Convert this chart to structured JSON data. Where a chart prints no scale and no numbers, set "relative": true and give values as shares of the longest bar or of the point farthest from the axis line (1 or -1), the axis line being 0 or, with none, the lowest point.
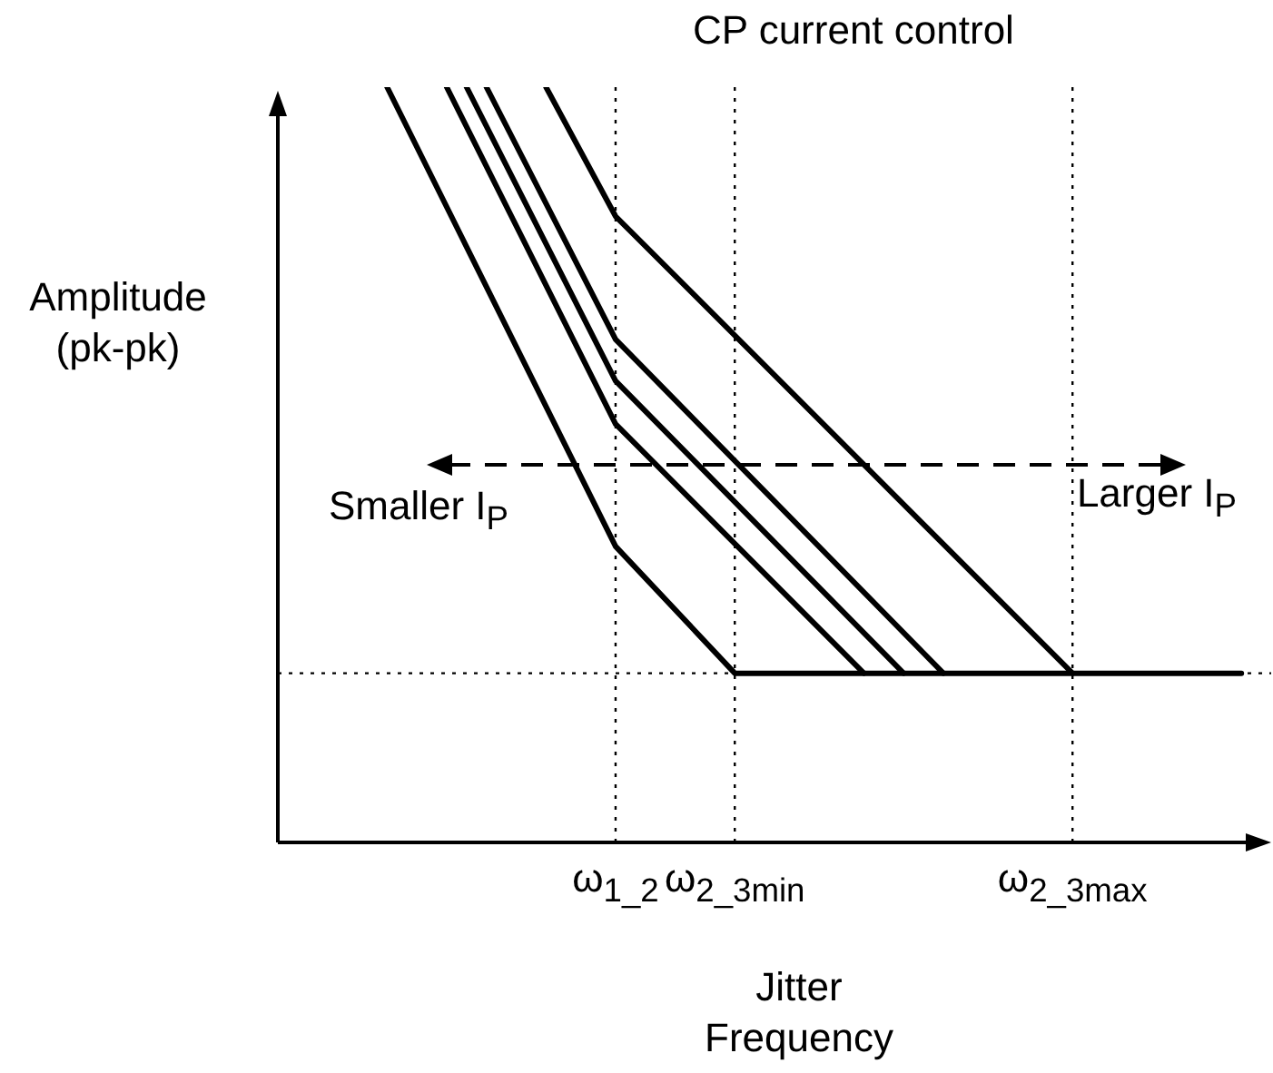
{
  "chart_data": {
    "type": "line",
    "title": "CP current control",
    "xlabel": "Jitter Frequency",
    "ylabel": "Amplitude (pk-pk)",
    "relative": true,
    "categories": [
      null,
      null,
      null,
      null,
      null,
      null,
      null,
      null,
      null,
      null,
      null,
      null,
      null,
      null,
      null,
      null,
      null,
      null,
      null,
      null,
      null,
      null,
      null,
      null,
      null,
      null,
      null,
      null,
      null,
      null,
      null,
      null,
      null,
      null,
      "ω$_{1_2}$",
      null,
      null,
      null,
      null,
      null,
      null,
      null,
      null,
      null,
      null,
      null,
      "ω$_{2_3min}$",
      null,
      null,
      null,
      null,
      null,
      null,
      null,
      null,
      null,
      null,
      null,
      null,
      null,
      null,
      null,
      null,
      null,
      null,
      null,
      null,
      null,
      null,
      null,
      null,
      null,
      null,
      null,
      null,
      null,
      null,
      null,
      null,
      null,
      "ω$_{2_3max}$",
      null,
      null,
      null,
      null,
      null,
      null,
      null,
      null,
      null,
      null,
      null,
      null,
      null,
      null,
      null,
      null,
      null,
      null,
      null,
      null
    ],
    "series": [
      {
        "color": "#000000",
        "values": [
          null,
          null,
          null,
          null,
          null,
          null,
          null,
          null,
          null,
          null,
          null,
          1,
          null,
          null,
          null,
          null,
          null,
          null,
          null,
          null,
          null,
          null,
          null,
          null,
          null,
          null,
          null,
          null,
          null,
          null,
          null,
          null,
          null,
          null,
          0.392,
          null,
          null,
          null,
          null,
          null,
          null,
          null,
          null,
          null,
          null,
          null,
          0.224,
          null,
          null,
          null,
          null,
          null,
          null,
          null,
          null,
          null,
          null,
          null,
          null,
          null,
          null,
          null,
          null,
          null,
          null,
          null,
          null,
          null,
          null,
          null,
          null,
          null,
          null,
          null,
          null,
          null,
          null,
          null,
          null,
          null,
          null,
          null,
          null,
          null,
          null,
          null,
          null,
          null,
          null,
          null,
          null,
          null,
          null,
          null,
          null,
          null,
          null,
          0.224,
          null,
          null,
          null
        ]
      },
      {
        "color": "#000000",
        "values": [
          null,
          null,
          null,
          null,
          null,
          null,
          null,
          null,
          null,
          null,
          null,
          null,
          null,
          null,
          null,
          null,
          null,
          1,
          null,
          null,
          null,
          null,
          null,
          null,
          null,
          null,
          null,
          null,
          null,
          null,
          null,
          null,
          null,
          null,
          0.554,
          null,
          null,
          null,
          null,
          null,
          null,
          null,
          null,
          null,
          null,
          null,
          null,
          null,
          null,
          null,
          null,
          null,
          null,
          null,
          null,
          null,
          null,
          null,
          null,
          0.224,
          null,
          null,
          null,
          null,
          null,
          null,
          null,
          null,
          null,
          null,
          null,
          null,
          null,
          null,
          null,
          null,
          null,
          null,
          null,
          null,
          null,
          null,
          null,
          null,
          null,
          null,
          null,
          null,
          null,
          null,
          null,
          null,
          null,
          null,
          null,
          null,
          null,
          null,
          null,
          null,
          null
        ]
      },
      {
        "color": "#000000",
        "values": [
          null,
          null,
          null,
          null,
          null,
          null,
          null,
          null,
          null,
          null,
          null,
          null,
          null,
          null,
          null,
          null,
          null,
          null,
          null,
          1,
          null,
          null,
          null,
          null,
          null,
          null,
          null,
          null,
          null,
          null,
          null,
          null,
          null,
          null,
          0.611,
          null,
          null,
          null,
          null,
          null,
          null,
          null,
          null,
          null,
          null,
          null,
          null,
          null,
          null,
          null,
          null,
          null,
          null,
          null,
          null,
          null,
          null,
          null,
          null,
          null,
          null,
          null,
          null,
          0.224,
          null,
          null,
          null,
          null,
          null,
          null,
          null,
          null,
          null,
          null,
          null,
          null,
          null,
          null,
          null,
          null,
          null,
          null,
          null,
          null,
          null,
          null,
          null,
          null,
          null,
          null,
          null,
          null,
          null,
          null,
          null,
          null,
          null,
          null,
          null,
          null,
          null
        ]
      },
      {
        "color": "#000000",
        "values": [
          null,
          null,
          null,
          null,
          null,
          null,
          null,
          null,
          null,
          null,
          null,
          null,
          null,
          null,
          null,
          null,
          null,
          null,
          null,
          null,
          null,
          1,
          null,
          null,
          null,
          null,
          null,
          null,
          null,
          null,
          null,
          null,
          null,
          null,
          0.666,
          null,
          null,
          null,
          null,
          null,
          null,
          null,
          null,
          null,
          null,
          null,
          null,
          null,
          null,
          null,
          null,
          null,
          null,
          null,
          null,
          null,
          null,
          null,
          null,
          null,
          null,
          null,
          null,
          null,
          null,
          null,
          null,
          0.224,
          null,
          null,
          null,
          null,
          null,
          null,
          null,
          null,
          null,
          null,
          null,
          null,
          null,
          null,
          null,
          null,
          null,
          null,
          null,
          null,
          null,
          null,
          null,
          null,
          null,
          null,
          null,
          null,
          null,
          null,
          null,
          null,
          null
        ]
      },
      {
        "color": "#000000",
        "values": [
          null,
          null,
          null,
          null,
          null,
          null,
          null,
          null,
          null,
          null,
          null,
          null,
          null,
          null,
          null,
          null,
          null,
          null,
          null,
          null,
          null,
          null,
          null,
          null,
          null,
          null,
          null,
          1,
          null,
          null,
          null,
          null,
          null,
          null,
          0.829,
          null,
          null,
          null,
          null,
          null,
          null,
          null,
          null,
          null,
          null,
          null,
          null,
          null,
          null,
          null,
          null,
          null,
          null,
          null,
          null,
          null,
          null,
          null,
          null,
          null,
          null,
          null,
          null,
          null,
          null,
          null,
          null,
          null,
          null,
          null,
          null,
          null,
          null,
          null,
          null,
          null,
          null,
          null,
          null,
          null,
          0.224,
          null,
          null,
          null,
          null,
          null,
          null,
          null,
          null,
          null,
          null,
          null,
          null,
          null,
          null,
          null,
          null,
          null,
          null,
          null,
          null
        ]
      }
    ],
    "ref_lines": [
      {
        "axis": "x",
        "value": "ω$_{1_2}$",
        "line_style": "dotted"
      },
      {
        "axis": "x",
        "value": "ω$_{2_3min}$",
        "line_style": "dotted"
      },
      {
        "axis": "x",
        "value": "ω$_{2_3max}$",
        "line_style": "dotted"
      },
      {
        "axis": "y",
        "value": 0.224,
        "line_style": "dotted"
      }
    ],
    "annotations": [
      "Smaller I$_{P}$",
      "Larger I$_{P}$"
    ],
    "legend": false,
    "marker": "none",
    "line_style": "solid"
  }
}
